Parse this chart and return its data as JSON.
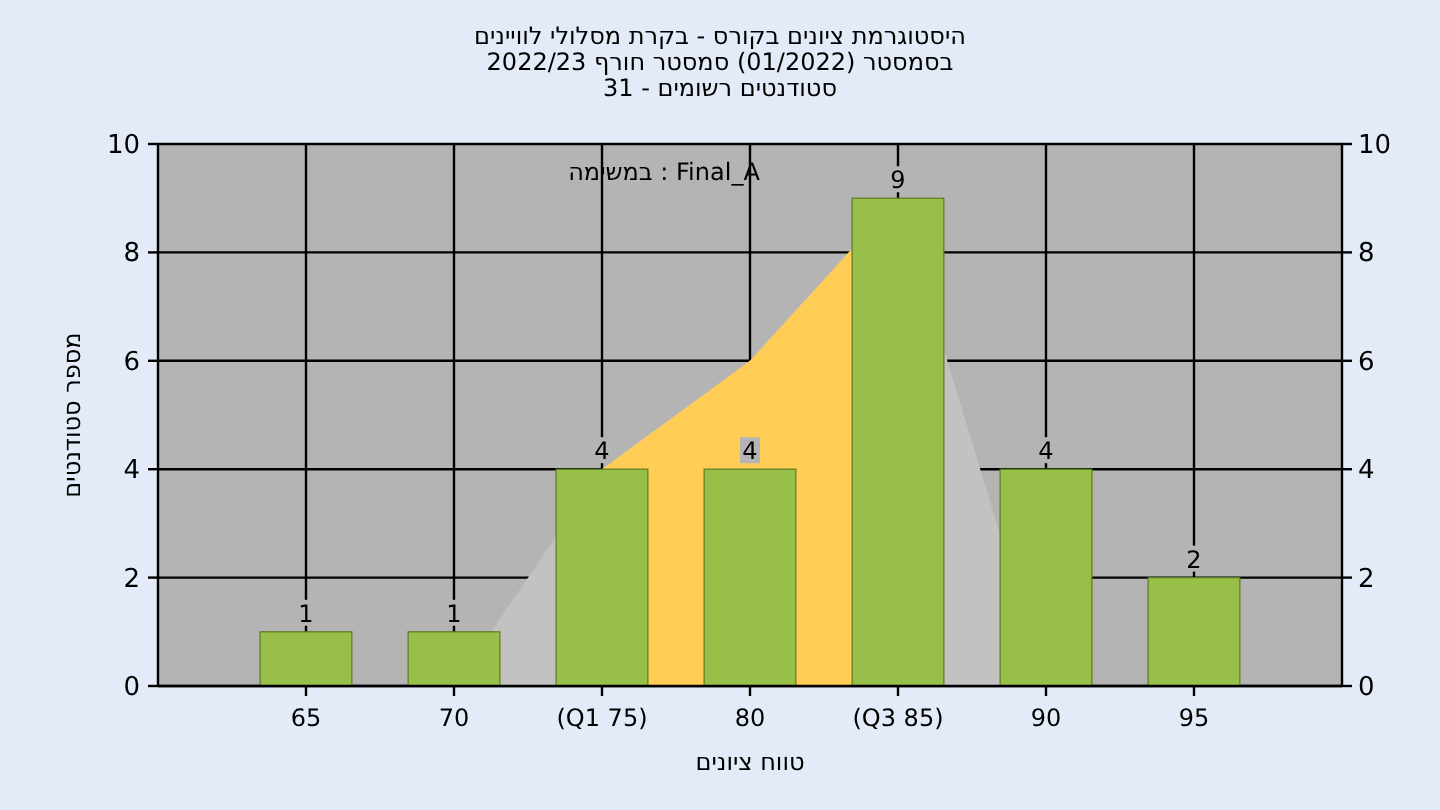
{
  "chart_data": {
    "type": "bar",
    "title": "היסטוגרמת ציונים בקורס - בקרת מסלולי לוויינים",
    "subtitle": "בסמסטר (01/2022) סמסטר חורף 2022/23",
    "annotations": [
      "סטודנטים רשומים - 31",
      "Final_A : במשימה"
    ],
    "xlabel": "טווח ציונים",
    "ylabel": "מספר סטודנטים",
    "categories": [
      "65",
      "70",
      "(Q1 75)",
      "80",
      "(Q3 85)",
      "90",
      "95"
    ],
    "series": [
      {
        "type": "area",
        "color": "#c2c2c2",
        "values": [
          null,
          0,
          4,
          6,
          9,
          0,
          null
        ]
      },
      {
        "type": "area",
        "color": "#ffcc55",
        "values": [
          null,
          null,
          4,
          6,
          9,
          null,
          null
        ]
      },
      {
        "color": "#98bf48",
        "values": [
          1,
          1,
          4,
          4,
          9,
          4,
          2
        ],
        "value_labels": [
          "1",
          "1",
          "4",
          "4",
          "9",
          "4",
          "2"
        ]
      }
    ],
    "ylim": [
      0,
      10
    ],
    "yticks": [
      0,
      2,
      4,
      6,
      8,
      10
    ],
    "y2lim": [
      0,
      10
    ],
    "y2ticks": [
      0,
      2,
      4,
      6,
      8,
      10
    ],
    "grid": true
  }
}
